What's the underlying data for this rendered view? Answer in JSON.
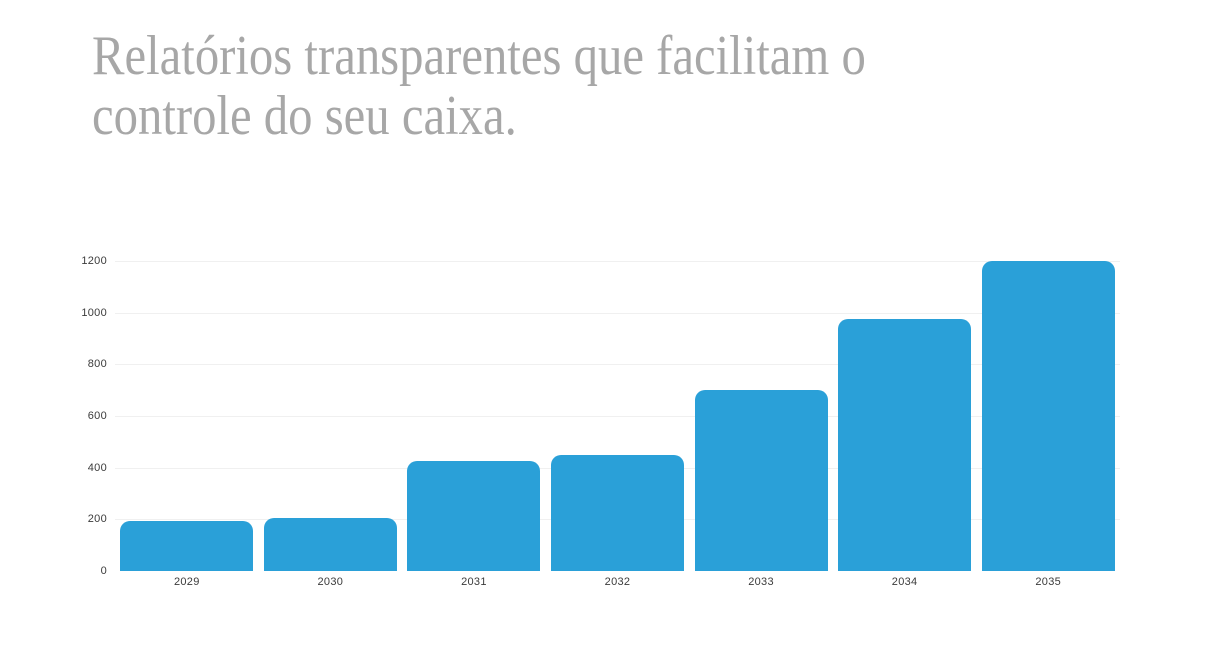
{
  "page": {
    "background_color": "#ffffff"
  },
  "title": {
    "text": "Relatórios transparentes que facilitam o controle do seu caixa.",
    "line1": "Relatórios transparentes que facilitam o",
    "line2": "controle do seu caixa.",
    "color": "#a7a7a7"
  },
  "chart_data": {
    "type": "bar",
    "categories": [
      "2029",
      "2030",
      "2031",
      "2032",
      "2033",
      "2034",
      "2035"
    ],
    "values": [
      195,
      205,
      425,
      450,
      700,
      975,
      1200
    ],
    "title": "",
    "xlabel": "",
    "ylabel": "",
    "ylim": [
      0,
      1200
    ],
    "yticks": [
      0,
      200,
      400,
      600,
      800,
      1000,
      1200
    ],
    "grid": true,
    "legend": "none",
    "bar_color": "#2aa0d8",
    "gridline_color": "#f0f0f0",
    "tick_label_color": "#3b3b3b"
  }
}
